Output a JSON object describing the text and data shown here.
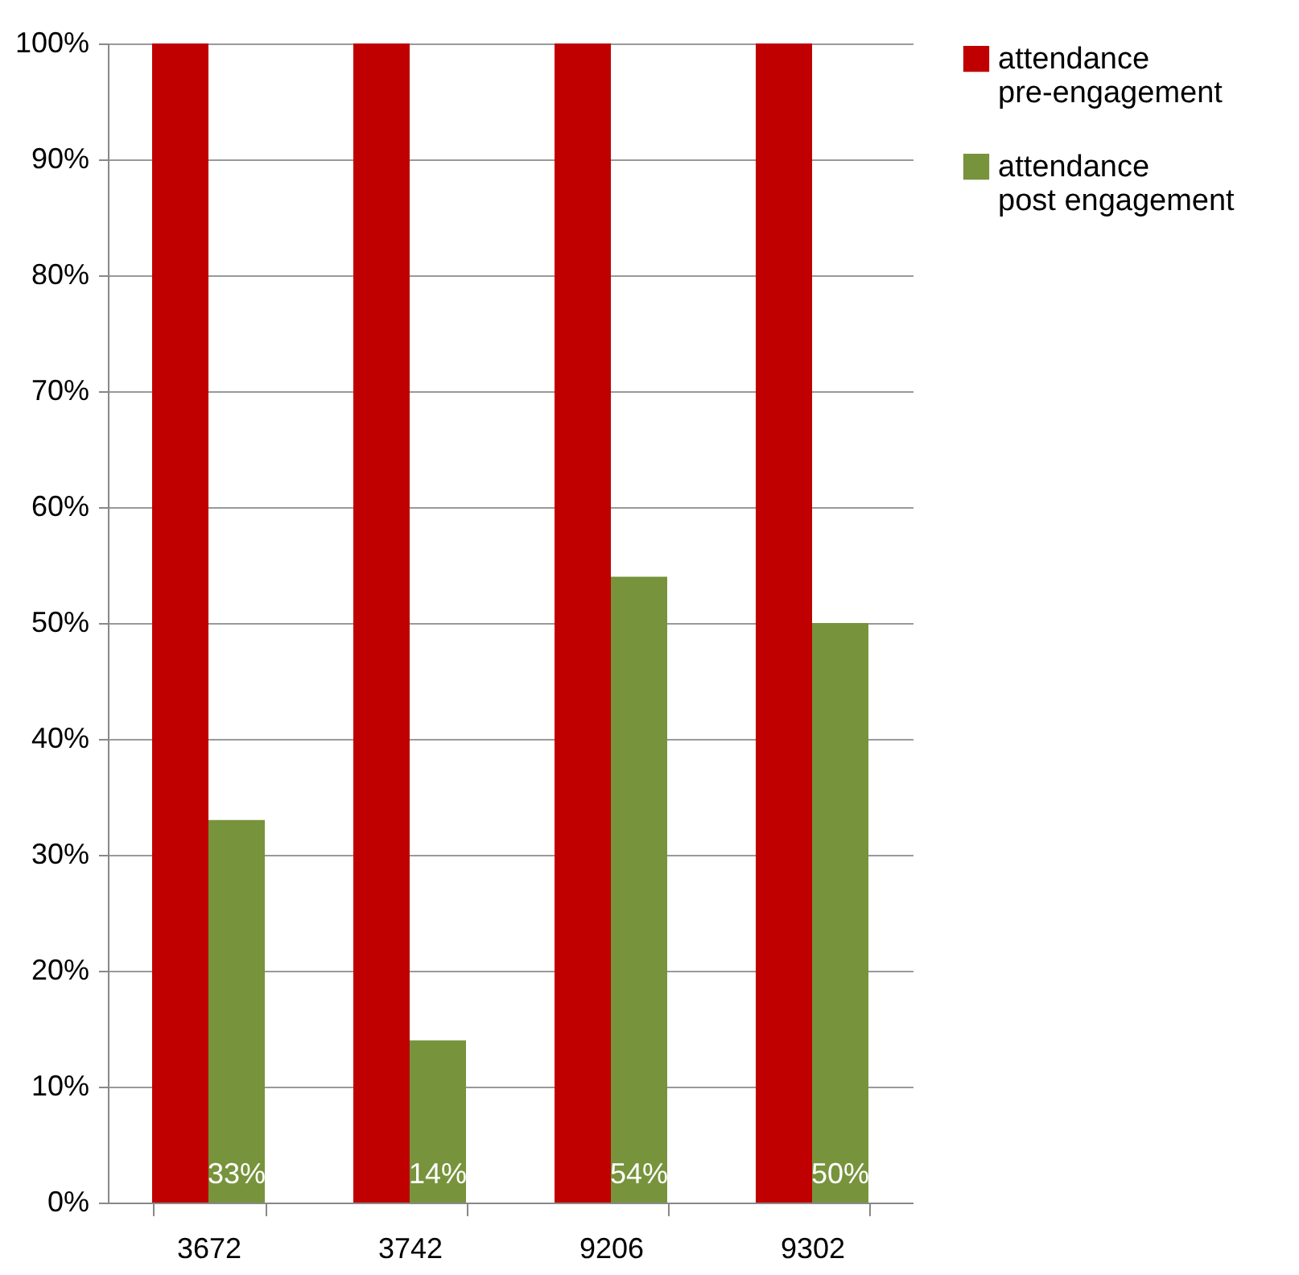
{
  "chart_data": {
    "type": "bar",
    "categories": [
      "3672",
      "3742",
      "9206",
      "9302"
    ],
    "series": [
      {
        "name": "attendance pre-engagement",
        "color": "#c00000",
        "values": [
          100,
          100,
          100,
          100
        ]
      },
      {
        "name": "attendance post engagement",
        "color": "#77933c",
        "values": [
          33,
          14,
          54,
          50
        ],
        "value_labels": [
          "33%",
          "14%",
          "54%",
          "50%"
        ]
      }
    ],
    "ylim": [
      0,
      100
    ],
    "yticks": [
      {
        "value": 0,
        "label": "0%"
      },
      {
        "value": 10,
        "label": "10%"
      },
      {
        "value": 20,
        "label": "20%"
      },
      {
        "value": 30,
        "label": "30%"
      },
      {
        "value": 40,
        "label": "40%"
      },
      {
        "value": 50,
        "label": "50%"
      },
      {
        "value": 60,
        "label": "60%"
      },
      {
        "value": 70,
        "label": "70%"
      },
      {
        "value": 80,
        "label": "80%"
      },
      {
        "value": 90,
        "label": "90%"
      },
      {
        "value": 100,
        "label": "100%"
      }
    ],
    "grid": "y",
    "legend": "right"
  }
}
